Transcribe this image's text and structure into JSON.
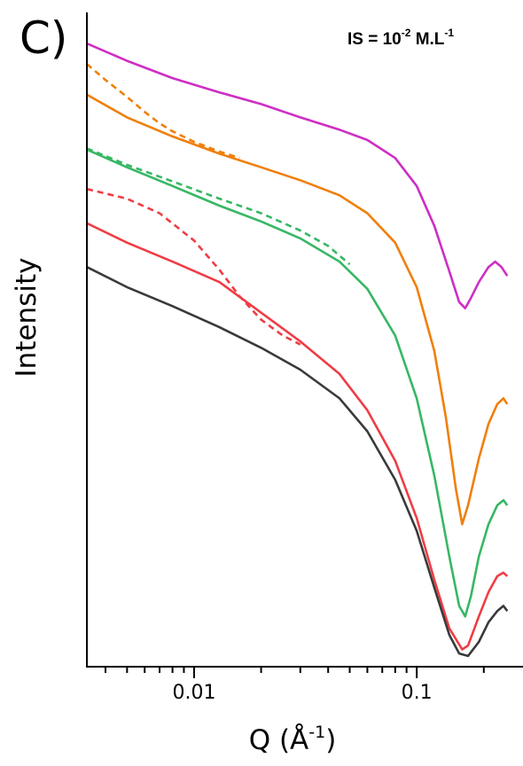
{
  "panel_label": "C)",
  "annotation": {
    "base": "IS = 10",
    "exponent": "-2",
    "unit": " M.L",
    "unit_exponent": "-1"
  },
  "chart_data": {
    "type": "line",
    "xlabel": {
      "base": "Q (Å",
      "exponent": "-1",
      "close": ")"
    },
    "ylabel": "Intensity",
    "xscale": "log",
    "yscale": "log",
    "xlim": [
      0.0033,
      0.3
    ],
    "ylim": [
      0.001,
      1
    ],
    "x_ticks": [
      {
        "value": 0.01,
        "label": "0.01"
      },
      {
        "value": 0.1,
        "label": "0.1"
      }
    ],
    "grid": false,
    "y_tick_labels": false,
    "series": [
      {
        "color": "#ce2ec4",
        "style": "solid",
        "points": [
          [
            0.0033,
            0.72
          ],
          [
            0.005,
            0.6
          ],
          [
            0.008,
            0.5
          ],
          [
            0.013,
            0.43
          ],
          [
            0.02,
            0.38
          ],
          [
            0.03,
            0.33
          ],
          [
            0.045,
            0.29
          ],
          [
            0.06,
            0.26
          ],
          [
            0.08,
            0.215
          ],
          [
            0.1,
            0.16
          ],
          [
            0.12,
            0.105
          ],
          [
            0.14,
            0.065
          ],
          [
            0.155,
            0.047
          ],
          [
            0.165,
            0.044
          ],
          [
            0.175,
            0.049
          ],
          [
            0.19,
            0.058
          ],
          [
            0.21,
            0.068
          ],
          [
            0.225,
            0.072
          ],
          [
            0.24,
            0.068
          ],
          [
            0.255,
            0.062
          ]
        ]
      },
      {
        "color": "#f07f0a",
        "style": "solid",
        "points": [
          [
            0.0033,
            0.42
          ],
          [
            0.005,
            0.33
          ],
          [
            0.008,
            0.27
          ],
          [
            0.013,
            0.225
          ],
          [
            0.02,
            0.195
          ],
          [
            0.03,
            0.17
          ],
          [
            0.045,
            0.145
          ],
          [
            0.06,
            0.12
          ],
          [
            0.08,
            0.088
          ],
          [
            0.1,
            0.055
          ],
          [
            0.12,
            0.028
          ],
          [
            0.135,
            0.014
          ],
          [
            0.15,
            0.0065
          ],
          [
            0.16,
            0.0045
          ],
          [
            0.17,
            0.0055
          ],
          [
            0.19,
            0.009
          ],
          [
            0.21,
            0.013
          ],
          [
            0.23,
            0.016
          ],
          [
            0.245,
            0.017
          ],
          [
            0.255,
            0.016
          ]
        ]
      },
      {
        "color": "#f07f0a",
        "style": "dashed",
        "points": [
          [
            0.0033,
            0.58
          ],
          [
            0.004,
            0.49
          ],
          [
            0.005,
            0.41
          ],
          [
            0.006,
            0.35
          ],
          [
            0.007,
            0.31
          ],
          [
            0.008,
            0.285
          ],
          [
            0.01,
            0.255
          ],
          [
            0.013,
            0.23
          ],
          [
            0.016,
            0.215
          ]
        ]
      },
      {
        "color": "#37b764",
        "style": "solid",
        "points": [
          [
            0.0033,
            0.235
          ],
          [
            0.005,
            0.195
          ],
          [
            0.008,
            0.16
          ],
          [
            0.013,
            0.13
          ],
          [
            0.02,
            0.11
          ],
          [
            0.03,
            0.092
          ],
          [
            0.045,
            0.072
          ],
          [
            0.06,
            0.054
          ],
          [
            0.08,
            0.033
          ],
          [
            0.1,
            0.017
          ],
          [
            0.12,
            0.0075
          ],
          [
            0.14,
            0.0032
          ],
          [
            0.155,
            0.0019
          ],
          [
            0.165,
            0.0017
          ],
          [
            0.175,
            0.0021
          ],
          [
            0.19,
            0.0032
          ],
          [
            0.21,
            0.0045
          ],
          [
            0.23,
            0.0055
          ],
          [
            0.245,
            0.0058
          ],
          [
            0.255,
            0.0055
          ]
        ]
      },
      {
        "color": "#37b764",
        "style": "dashed",
        "points": [
          [
            0.0033,
            0.238
          ],
          [
            0.005,
            0.2
          ],
          [
            0.008,
            0.168
          ],
          [
            0.013,
            0.14
          ],
          [
            0.02,
            0.12
          ],
          [
            0.03,
            0.1
          ],
          [
            0.04,
            0.085
          ],
          [
            0.05,
            0.07
          ]
        ]
      },
      {
        "color": "#ef3d44",
        "style": "solid",
        "points": [
          [
            0.0033,
            0.108
          ],
          [
            0.005,
            0.088
          ],
          [
            0.008,
            0.072
          ],
          [
            0.013,
            0.058
          ],
          [
            0.02,
            0.042
          ],
          [
            0.03,
            0.031
          ],
          [
            0.045,
            0.022
          ],
          [
            0.06,
            0.015
          ],
          [
            0.08,
            0.0088
          ],
          [
            0.1,
            0.0048
          ],
          [
            0.12,
            0.0025
          ],
          [
            0.14,
            0.0015
          ],
          [
            0.16,
            0.0012
          ],
          [
            0.17,
            0.00125
          ],
          [
            0.19,
            0.0017
          ],
          [
            0.21,
            0.0022
          ],
          [
            0.23,
            0.0026
          ],
          [
            0.245,
            0.0027
          ],
          [
            0.255,
            0.0026
          ]
        ]
      },
      {
        "color": "#ef3d44",
        "style": "dashed",
        "points": [
          [
            0.0033,
            0.155
          ],
          [
            0.005,
            0.14
          ],
          [
            0.007,
            0.12
          ],
          [
            0.01,
            0.09
          ],
          [
            0.013,
            0.066
          ],
          [
            0.016,
            0.05
          ],
          [
            0.02,
            0.039
          ],
          [
            0.025,
            0.033
          ],
          [
            0.03,
            0.03
          ]
        ]
      },
      {
        "color": "#3a3a3a",
        "style": "solid",
        "points": [
          [
            0.0033,
            0.068
          ],
          [
            0.005,
            0.055
          ],
          [
            0.008,
            0.045
          ],
          [
            0.013,
            0.036
          ],
          [
            0.02,
            0.029
          ],
          [
            0.03,
            0.023
          ],
          [
            0.045,
            0.017
          ],
          [
            0.06,
            0.012
          ],
          [
            0.08,
            0.0072
          ],
          [
            0.1,
            0.0042
          ],
          [
            0.12,
            0.0023
          ],
          [
            0.14,
            0.0014
          ],
          [
            0.155,
            0.00115
          ],
          [
            0.17,
            0.00112
          ],
          [
            0.19,
            0.0013
          ],
          [
            0.21,
            0.0016
          ],
          [
            0.23,
            0.0018
          ],
          [
            0.245,
            0.0019
          ],
          [
            0.255,
            0.0018
          ]
        ]
      }
    ]
  }
}
